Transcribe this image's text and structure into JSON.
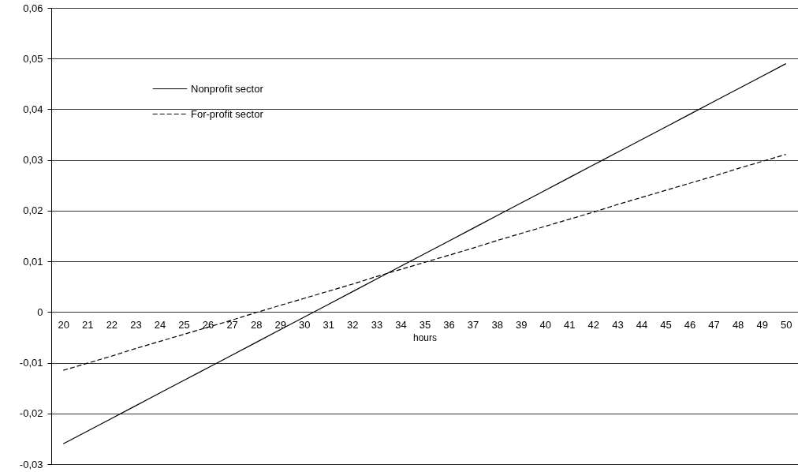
{
  "chart_data": {
    "type": "line",
    "xlabel": "hours",
    "categories": [
      "20",
      "21",
      "22",
      "23",
      "24",
      "25",
      "26",
      "27",
      "28",
      "29",
      "30",
      "31",
      "32",
      "33",
      "34",
      "35",
      "36",
      "37",
      "38",
      "39",
      "40",
      "41",
      "42",
      "43",
      "44",
      "45",
      "46",
      "47",
      "48",
      "49",
      "50"
    ],
    "ylim": [
      -0.03,
      0.06
    ],
    "yticks": [
      {
        "value": -0.03,
        "label": "-0,03"
      },
      {
        "value": -0.02,
        "label": "-0,02"
      },
      {
        "value": -0.01,
        "label": "-0,01"
      },
      {
        "value": 0,
        "label": "0"
      },
      {
        "value": 0.01,
        "label": "0,01"
      },
      {
        "value": 0.02,
        "label": "0,02"
      },
      {
        "value": 0.03,
        "label": "0,03"
      },
      {
        "value": 0.04,
        "label": "0,04"
      },
      {
        "value": 0.05,
        "label": "0,05"
      },
      {
        "value": 0.06,
        "label": "0,06"
      }
    ],
    "grid": "y",
    "legend": "top left",
    "marker": "none",
    "series": [
      {
        "name": "Nonprofit sector",
        "color": "#000000",
        "line_style": "solid",
        "values": [
          -0.026,
          -0.0235,
          -0.021,
          -0.0185,
          -0.016,
          -0.0135,
          -0.011,
          -0.0085,
          -0.006,
          -0.0035,
          -0.001,
          0.0015,
          0.004,
          0.0065,
          0.009,
          0.0115,
          0.014,
          0.0165,
          0.019,
          0.0215,
          0.024,
          0.0265,
          0.029,
          0.0315,
          0.034,
          0.0365,
          0.039,
          0.0415,
          0.044,
          0.0465,
          0.049
        ]
      },
      {
        "name": "For-profit sector",
        "color": "#000000",
        "line_style": "dashed",
        "values": [
          -0.0115,
          -0.0101,
          -0.0087,
          -0.0072,
          -0.0058,
          -0.0044,
          -0.003,
          -0.0016,
          -0.0001,
          0.0013,
          0.0027,
          0.0041,
          0.0055,
          0.007,
          0.0084,
          0.0098,
          0.0112,
          0.0126,
          0.0141,
          0.0155,
          0.0169,
          0.0183,
          0.0197,
          0.0212,
          0.0226,
          0.024,
          0.0254,
          0.0268,
          0.0283,
          0.0297,
          0.0311
        ]
      }
    ]
  }
}
